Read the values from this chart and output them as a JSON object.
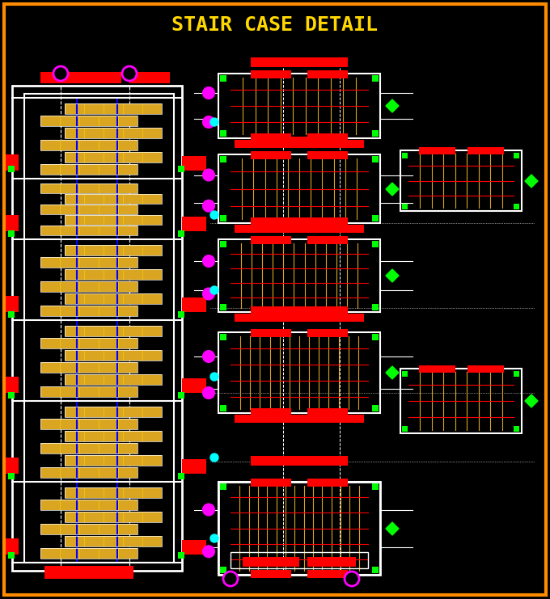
{
  "title": "STAIR CASE DETAIL",
  "title_color": "#FFD700",
  "title_fontsize": 18,
  "bg_color": "#000000",
  "border_color": "#FF8C00",
  "border_width": 3,
  "fig_width": 6.8,
  "fig_height": 7.41,
  "dpi": 100,
  "red": "#FF0000",
  "white": "#FFFFFF",
  "yellow": "#FFD700",
  "green": "#00FF00",
  "cyan": "#00FFFF",
  "magenta": "#FF00FF",
  "blue": "#0000FF",
  "gold": "#DAA520",
  "orange": "#FFA500"
}
